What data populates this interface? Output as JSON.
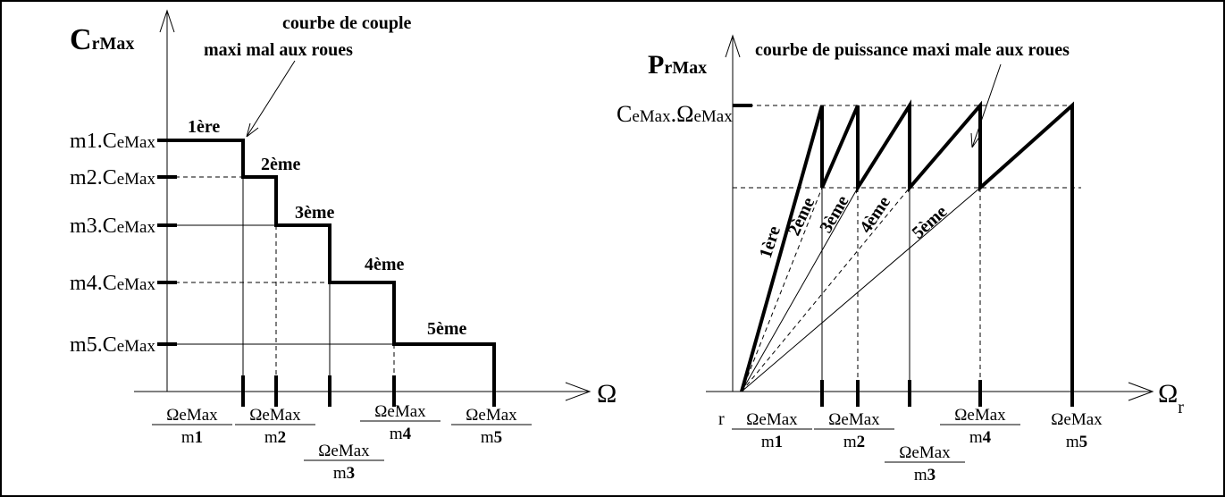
{
  "left": {
    "axis_title": {
      "main": "C",
      "sub": "rMax"
    },
    "x_axis_symbol": "Ω",
    "annotation": [
      "courbe de couple",
      "maxi mal aux roues"
    ],
    "y_levels": [
      {
        "prefix": "m1.",
        "main": "C",
        "sub": "eMax"
      },
      {
        "prefix": "m2.",
        "main": "C",
        "sub": "eMax"
      },
      {
        "prefix": "m3.",
        "main": "C",
        "sub": "eMax"
      },
      {
        "prefix": "m4.",
        "main": "C",
        "sub": "eMax"
      },
      {
        "prefix": "m5.",
        "main": "C",
        "sub": "eMax"
      }
    ],
    "gears": [
      "1ère",
      "2ème",
      "3ème",
      "4ème",
      "5ème"
    ],
    "x_labels": [
      {
        "num": "ΩeMax",
        "den": "m",
        "idx": "1"
      },
      {
        "num": "ΩeMax",
        "den": "m",
        "idx": "2"
      },
      {
        "num": "ΩeMax",
        "den": "m",
        "idx": "3"
      },
      {
        "num": "ΩeMax",
        "den": "m",
        "idx": "4"
      },
      {
        "num": "ΩeMax",
        "den": "m",
        "idx": "5"
      }
    ]
  },
  "right": {
    "axis_title": {
      "main": "P",
      "sub": "rMax"
    },
    "x_axis_symbol": {
      "main": "Ω",
      "sub": "r"
    },
    "annotation": "courbe de puissance maxi male aux roues",
    "y_level": {
      "c": "C",
      "c_sub": "eMax",
      "omega": ".Ω",
      "omega_sub": "eMax"
    },
    "origin_label": "r",
    "gears": [
      "1ère",
      "2ème",
      "3ème",
      "4ème",
      "5ème"
    ],
    "x_labels": [
      {
        "num": "ΩeMax",
        "den": "m",
        "idx": "1"
      },
      {
        "num": "ΩeMax",
        "den": "m",
        "idx": "2"
      },
      {
        "num": "ΩeMax",
        "den": "m",
        "idx": "3"
      },
      {
        "num": "ΩeMax",
        "den": "m",
        "idx": "4"
      },
      {
        "num": "ΩeMax",
        "den": "m",
        "idx": "5"
      }
    ]
  }
}
